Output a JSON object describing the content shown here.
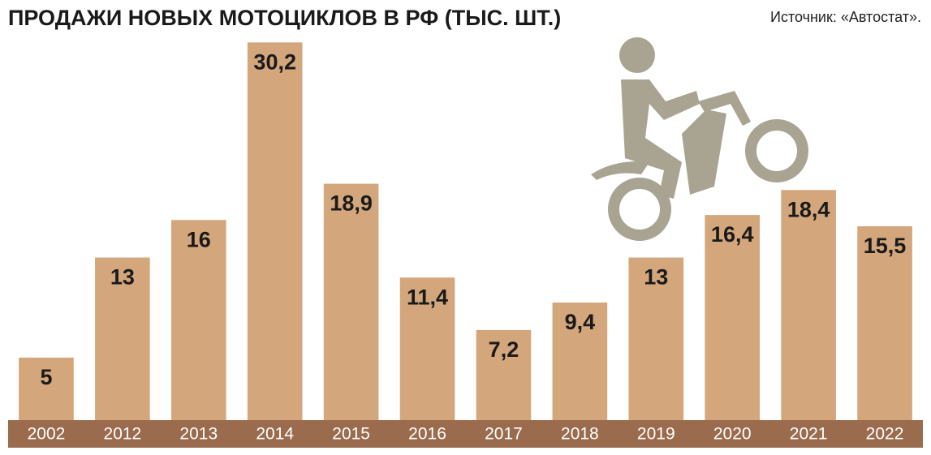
{
  "chart_data": {
    "type": "bar",
    "title": "ПРОДАЖИ НОВЫХ МОТОЦИКЛОВ В РФ (ТЫС. ШТ.)",
    "source": "Источник: «Автостат».",
    "categories": [
      "2002",
      "2012",
      "2013",
      "2014",
      "2015",
      "2016",
      "2017",
      "2018",
      "2019",
      "2020",
      "2021",
      "2022"
    ],
    "values": [
      5,
      13,
      16,
      30.2,
      18.9,
      11.4,
      7.2,
      9.4,
      13,
      16.4,
      18.4,
      15.5
    ],
    "value_labels": [
      "5",
      "13",
      "16",
      "30,2",
      "18,9",
      "11,4",
      "7,2",
      "9,4",
      "13",
      "16,4",
      "18,4",
      "15,5"
    ],
    "color": "#d4a67b",
    "ylim": [
      0,
      31
    ]
  }
}
